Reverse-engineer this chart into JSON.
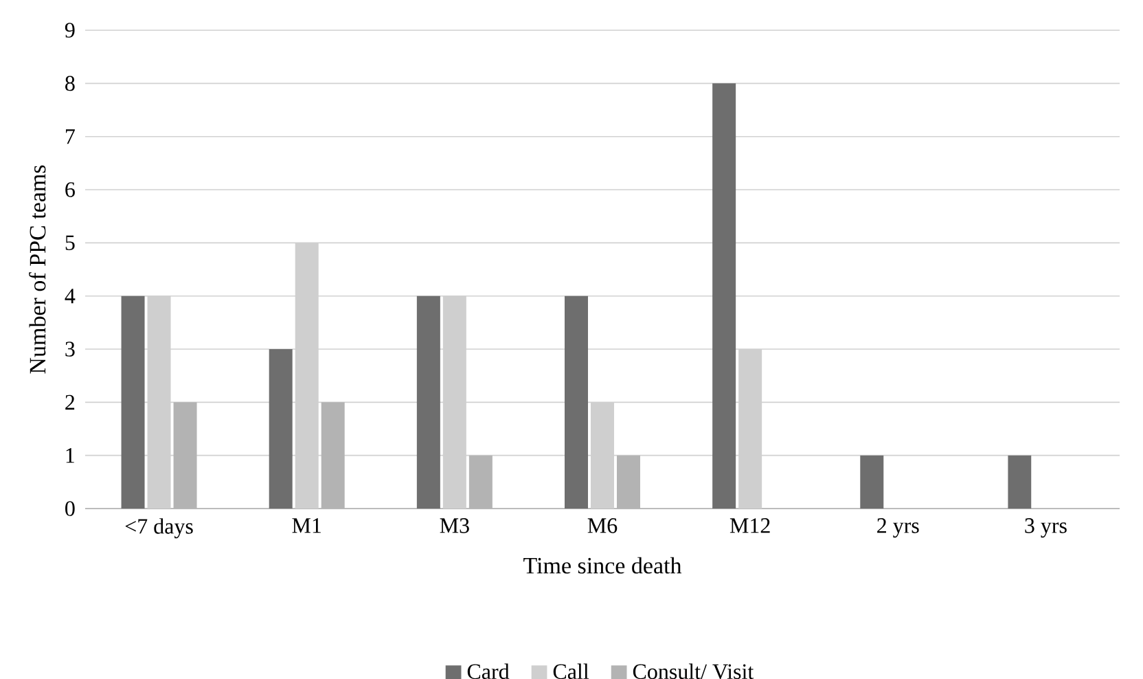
{
  "chart_data": {
    "type": "bar",
    "xlabel": "Time since death",
    "ylabel": "Number of PPC teams",
    "categories": [
      "<7 days",
      "M1",
      "M3",
      "M6",
      "M12",
      "2 yrs",
      "3 yrs"
    ],
    "series": [
      {
        "name": "Card",
        "color": "#6e6e6e",
        "values": [
          4,
          3,
          4,
          4,
          8,
          1,
          1
        ]
      },
      {
        "name": "Call",
        "color": "#cfcfcf",
        "values": [
          4,
          5,
          4,
          2,
          3,
          0,
          0
        ]
      },
      {
        "name": "Consult/ Visit",
        "color": "#b3b3b3",
        "values": [
          2,
          2,
          1,
          1,
          0,
          0,
          0
        ]
      }
    ],
    "ylim": [
      0,
      9
    ],
    "yticks": [
      0,
      1,
      2,
      3,
      4,
      5,
      6,
      7,
      8,
      9
    ],
    "grid": "y",
    "legend": "bottom"
  }
}
